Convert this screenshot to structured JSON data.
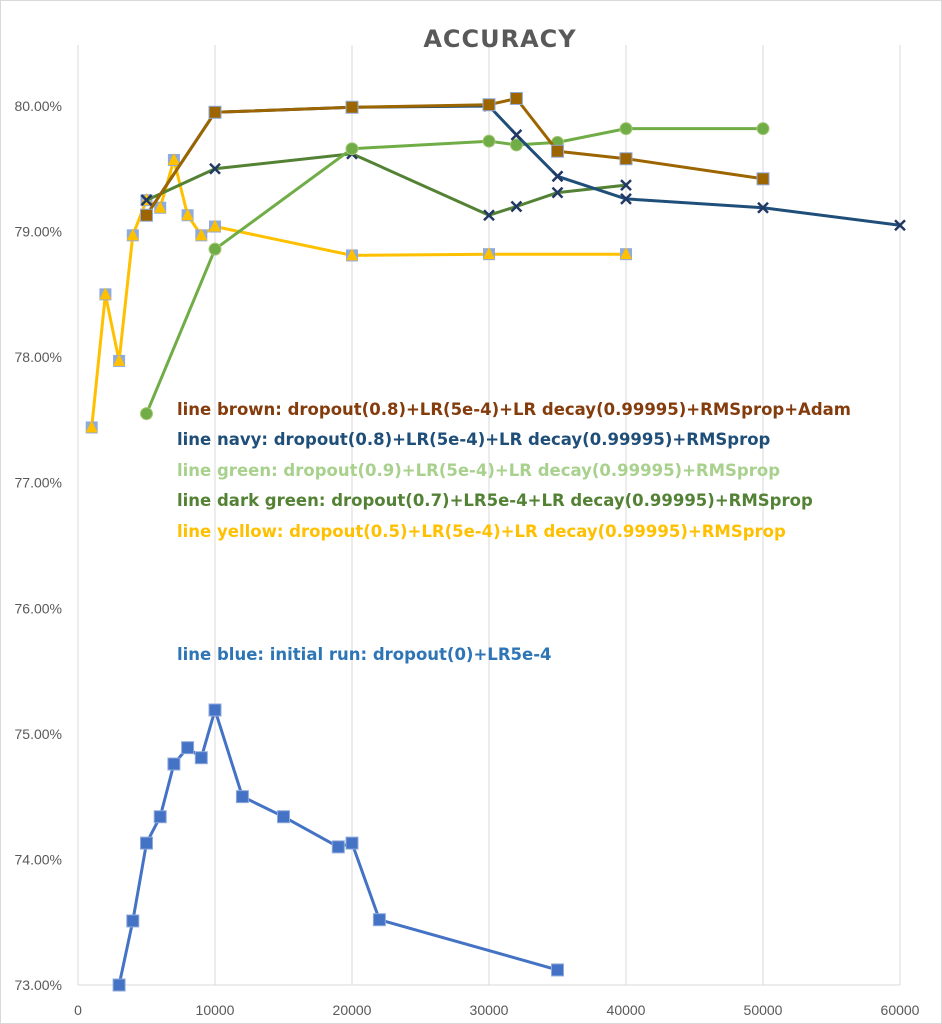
{
  "chart_data": {
    "type": "line",
    "title": "ACCURACY",
    "xlabel": "",
    "ylabel": "",
    "xlim": [
      0,
      60000
    ],
    "ylim": [
      73.0,
      80.5
    ],
    "xticks": [
      "0",
      "10000",
      "20000",
      "30000",
      "40000",
      "50000",
      "60000"
    ],
    "xtick_values": [
      0,
      10000,
      20000,
      30000,
      40000,
      50000,
      60000
    ],
    "yticks": [
      "73.00%",
      "74.00%",
      "75.00%",
      "76.00%",
      "77.00%",
      "78.00%",
      "79.00%",
      "80.00%"
    ],
    "ytick_values": [
      73,
      74,
      75,
      76,
      77,
      78,
      79,
      80
    ],
    "grid": "vertical",
    "legend": "none",
    "series": [
      {
        "color": "#4472c4",
        "marker": "square",
        "x": [
          3000,
          4000,
          5000,
          6000,
          7000,
          8000,
          9000,
          10000,
          12000,
          15000,
          19000,
          20000,
          22000,
          35000
        ],
        "y": [
          73.0,
          73.51,
          74.13,
          74.34,
          74.76,
          74.89,
          74.81,
          75.19,
          74.5,
          74.34,
          74.1,
          74.13,
          73.52,
          73.12
        ]
      },
      {
        "color": "#ffc000",
        "marker": "triangle",
        "x": [
          1000,
          2000,
          3000,
          4000,
          5000,
          6000,
          7000,
          8000,
          9000,
          10000,
          20000,
          30000,
          40000
        ],
        "y": [
          77.44,
          78.5,
          77.97,
          78.97,
          79.25,
          79.19,
          79.57,
          79.13,
          78.97,
          79.04,
          78.81,
          78.82,
          78.82
        ]
      },
      {
        "color": "#548235",
        "marker": "x",
        "x": [
          5000,
          10000,
          20000,
          30000,
          32000,
          35000,
          40000
        ],
        "y": [
          79.25,
          79.5,
          79.62,
          79.13,
          79.2,
          79.31,
          79.37
        ]
      },
      {
        "color": "#70ad47",
        "marker": "circle",
        "x": [
          5000,
          10000,
          20000,
          30000,
          32000,
          35000,
          40000,
          50000
        ],
        "y": [
          77.55,
          78.86,
          79.66,
          79.72,
          79.69,
          79.71,
          79.82,
          79.82
        ]
      },
      {
        "color": "#1f4e79",
        "marker": "x",
        "x": [
          5000,
          10000,
          20000,
          30000,
          32000,
          35000,
          40000,
          50000,
          60000
        ],
        "y": [
          79.13,
          79.95,
          79.99,
          80.0,
          79.77,
          79.44,
          79.26,
          79.19,
          79.05
        ]
      },
      {
        "color": "#9c6500",
        "marker": "square",
        "x": [
          5000,
          10000,
          20000,
          30000,
          32000,
          35000,
          40000,
          50000
        ],
        "y": [
          79.13,
          79.95,
          79.99,
          80.01,
          80.06,
          79.64,
          79.58,
          79.42
        ]
      }
    ],
    "annotations": [
      {
        "text": "line brown: dropout(0.8)+LR(5e-4)+LR decay(0.99995)+RMSprop+Adam",
        "color": "#843c0c"
      },
      {
        "text": "line navy: dropout(0.8)+LR(5e-4)+LR decay(0.99995)+RMSprop",
        "color": "#1f4e79"
      },
      {
        "text": "line green: dropout(0.9)+LR(5e-4)+LR decay(0.99995)+RMSprop",
        "color": "#a9d18e"
      },
      {
        "text": "line dark green: dropout(0.7)+LR5e-4+LR decay(0.99995)+RMSprop",
        "color": "#548235"
      },
      {
        "text": "line yellow: dropout(0.5)+LR(5e-4)+LR decay(0.99995)+RMSprop",
        "color": "#ffc000"
      },
      {
        "text": "line blue: initial run: dropout(0)+LR5e-4",
        "color": "#2e75b6"
      }
    ]
  }
}
